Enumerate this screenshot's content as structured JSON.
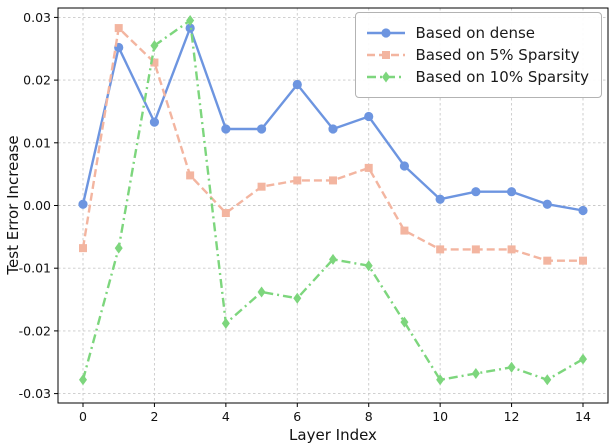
{
  "figure": {
    "title": "",
    "xlabel": "Layer Index",
    "ylabel": "Test Error Increase"
  },
  "chart_data": {
    "type": "line",
    "title": "",
    "xlabel": "Layer Index",
    "ylabel": "Test Error Increase",
    "grid": true,
    "legend_position": "upper right",
    "x": [
      0,
      1,
      2,
      3,
      4,
      5,
      6,
      7,
      8,
      9,
      10,
      11,
      12,
      13,
      14
    ],
    "xticks": [
      0,
      2,
      4,
      6,
      8,
      10,
      12,
      14
    ],
    "ytick_labels": [
      "-0.03",
      "-0.02",
      "-0.01",
      "0.00",
      "0.01",
      "0.02",
      "0.03"
    ],
    "ytick_values": [
      -0.03,
      -0.02,
      -0.01,
      0,
      0.01,
      0.02,
      0.03
    ],
    "xlim": [
      -0.7,
      14.7
    ],
    "ylim": [
      -0.0315,
      0.0315
    ],
    "series": [
      {
        "name": "Based on dense",
        "color": "#6d95e0",
        "marker": "circle",
        "linestyle": "solid",
        "values": [
          0.0002,
          0.0252,
          0.0133,
          0.0283,
          0.0122,
          0.0122,
          0.0193,
          0.0122,
          0.0142,
          0.0063,
          0.001,
          0.0022,
          0.0022,
          0.0002,
          -0.0008
        ]
      },
      {
        "name": "Based on 5% Sparsity",
        "color": "#f3b5a0",
        "marker": "square",
        "linestyle": "dashed",
        "values": [
          -0.0068,
          0.0283,
          0.0228,
          0.0048,
          -0.0012,
          0.003,
          0.004,
          0.004,
          0.006,
          -0.004,
          -0.007,
          -0.007,
          -0.007,
          -0.0088,
          -0.0088
        ]
      },
      {
        "name": "Based on 10% Sparsity",
        "color": "#7dd67d",
        "marker": "diamond",
        "linestyle": "dashdot",
        "values": [
          -0.0278,
          -0.0068,
          0.0255,
          0.0295,
          -0.0188,
          -0.0138,
          -0.0148,
          -0.0086,
          -0.0096,
          -0.0186,
          -0.0278,
          -0.0268,
          -0.0258,
          -0.0278,
          -0.0245
        ]
      }
    ]
  }
}
